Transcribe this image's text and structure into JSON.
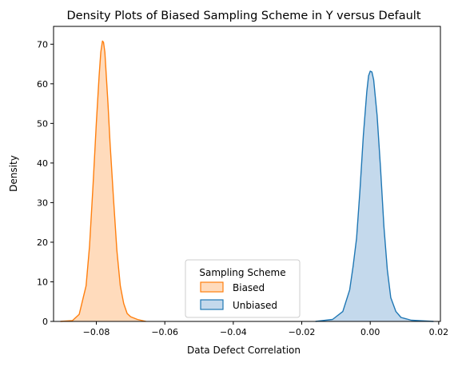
{
  "chart_data": {
    "type": "area",
    "title": "Density Plots of Biased Sampling Scheme in Y versus Default",
    "xlabel": "Data Defect Correlation",
    "ylabel": "Density",
    "xlim": [
      -0.0925,
      0.0205
    ],
    "ylim": [
      0,
      74.5
    ],
    "xticks": [
      -0.08,
      -0.06,
      -0.04,
      -0.02,
      0.0,
      0.02
    ],
    "xtick_labels": [
      "−0.08",
      "−0.06",
      "−0.04",
      "−0.02",
      "0.00",
      "0.02"
    ],
    "yticks": [
      0,
      10,
      20,
      30,
      40,
      50,
      60,
      70
    ],
    "ytick_labels": [
      "0",
      "10",
      "20",
      "30",
      "40",
      "50",
      "60",
      "70"
    ],
    "grid": false,
    "legend": {
      "title": "Sampling Scheme",
      "placement": "lower-center"
    },
    "series": [
      {
        "name": "Biased",
        "line_color": "#ff7f0e",
        "fill_color": "#ffdbbc",
        "x": [
          -0.0905,
          -0.087,
          -0.085,
          -0.083,
          -0.082,
          -0.081,
          -0.08,
          -0.0792,
          -0.0787,
          -0.0782,
          -0.0779,
          -0.0775,
          -0.0771,
          -0.0766,
          -0.076,
          -0.075,
          -0.074,
          -0.073,
          -0.072,
          -0.071,
          -0.07,
          -0.068,
          -0.0655
        ],
        "y": [
          0,
          0.2,
          1.8,
          9,
          19,
          34,
          50,
          62,
          68,
          70.8,
          70.5,
          68,
          62,
          55,
          45,
          31,
          18,
          9,
          4.5,
          2,
          1.2,
          0.5,
          0
        ]
      },
      {
        "name": "Unbiased",
        "line_color": "#1f77b4",
        "fill_color": "#c4d9ec",
        "x": [
          -0.016,
          -0.011,
          -0.008,
          -0.006,
          -0.005,
          -0.004,
          -0.003,
          -0.002,
          -0.001,
          -0.0005,
          0.0,
          0.0005,
          0.001,
          0.002,
          0.003,
          0.004,
          0.005,
          0.006,
          0.0075,
          0.009,
          0.012,
          0.0185
        ],
        "y": [
          0,
          0.5,
          2.5,
          8,
          14,
          21,
          33,
          47,
          58,
          62,
          63.2,
          63,
          61,
          52,
          39,
          24,
          13,
          6,
          2.5,
          1,
          0.3,
          0
        ]
      }
    ]
  }
}
